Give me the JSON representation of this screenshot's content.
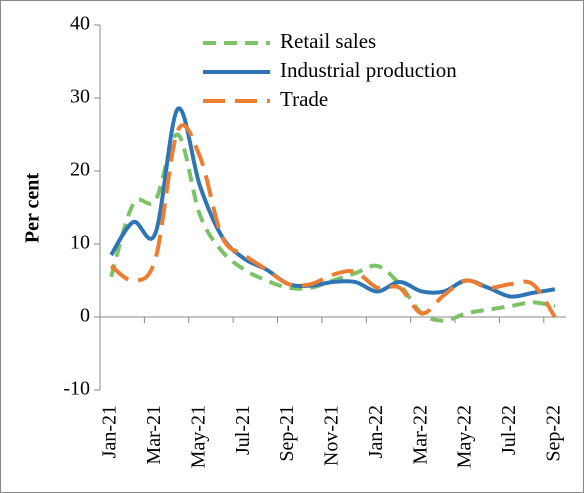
{
  "chart_data": {
    "type": "line",
    "ylabel": "Per cent",
    "categories": [
      "Jan-21",
      null,
      "Mar-21",
      null,
      "May-21",
      null,
      "Jul-21",
      null,
      "Sep-21",
      null,
      "Nov-21",
      null,
      "Jan-22",
      null,
      "Mar-22",
      null,
      "May-22",
      null,
      "Jul-22",
      null,
      "Sep-22"
    ],
    "series": [
      {
        "name": "Retail sales",
        "color": "#7cc266",
        "dash": "dashed",
        "values": [
          5.5,
          15.5,
          16,
          25,
          14,
          9,
          6.5,
          5,
          4,
          4,
          5,
          6,
          7,
          4.5,
          0.5,
          -0.5,
          0.5,
          1,
          1.5,
          2,
          1.5
        ]
      },
      {
        "name": "Industrial production",
        "color": "#2e75b6",
        "dash": "solid",
        "values": [
          8.5,
          13,
          11.5,
          28.5,
          18,
          11,
          8,
          6.5,
          4.5,
          4.3,
          4.8,
          4.8,
          3.5,
          4.8,
          3.5,
          3.5,
          5,
          4,
          2.8,
          3.3,
          3.8
        ]
      },
      {
        "name": "Trade",
        "color": "#ed7d31",
        "dash": "longdash",
        "values": [
          7,
          5,
          8,
          25.5,
          22,
          11,
          8.5,
          6.5,
          4.5,
          4.5,
          5.8,
          6.2,
          4,
          4,
          0.5,
          3,
          5,
          4,
          4.5,
          4.5,
          0
        ]
      }
    ],
    "ylim": [
      -10,
      40
    ],
    "yticks": [
      -10,
      0,
      10,
      20,
      30,
      40
    ],
    "grid": false,
    "legend": "top"
  }
}
